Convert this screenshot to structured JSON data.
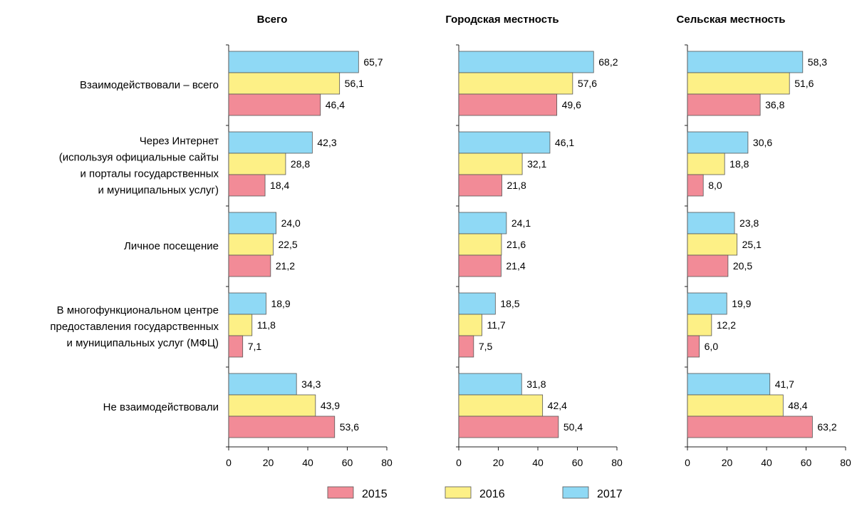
{
  "chart_data": {
    "type": "bar",
    "orientation": "horizontal",
    "categories": [
      [
        "Взаимодействовали – всего"
      ],
      [
        "Через Интернет",
        "(используя официальные сайты",
        "и порталы государственных",
        "и муниципальных услуг)"
      ],
      [
        "Личное посещение"
      ],
      [
        "В многофункциональном центре",
        "предоставления государственных",
        "и муниципальных услуг (МФЦ)"
      ],
      [
        "Не взаимодействовали"
      ]
    ],
    "xlim": [
      0,
      80
    ],
    "xticks": [
      "0",
      "20",
      "40",
      "60",
      "80"
    ],
    "legend_position": "bottom",
    "legend": [
      {
        "label": "2015",
        "color": "#f28b97"
      },
      {
        "label": "2016",
        "color": "#fdf086"
      },
      {
        "label": "2017",
        "color": "#8fd9f5"
      }
    ],
    "panels": [
      {
        "title": "Всего",
        "series": [
          {
            "name": "2017",
            "values": [
              65.7,
              42.3,
              24.0,
              18.9,
              34.3
            ],
            "labels": [
              "65,7",
              "42,3",
              "24,0",
              "18,9",
              "34,3"
            ]
          },
          {
            "name": "2016",
            "values": [
              56.1,
              28.8,
              22.5,
              11.8,
              43.9
            ],
            "labels": [
              "56,1",
              "28,8",
              "22,5",
              "11,8",
              "43,9"
            ]
          },
          {
            "name": "2015",
            "values": [
              46.4,
              18.4,
              21.2,
              7.1,
              53.6
            ],
            "labels": [
              "46,4",
              "18,4",
              "21,2",
              "7,1",
              "53,6"
            ]
          }
        ]
      },
      {
        "title": "Городская местность",
        "series": [
          {
            "name": "2017",
            "values": [
              68.2,
              46.1,
              24.1,
              18.5,
              31.8
            ],
            "labels": [
              "68,2",
              "46,1",
              "24,1",
              "18,5",
              "31,8"
            ]
          },
          {
            "name": "2016",
            "values": [
              57.6,
              32.1,
              21.6,
              11.7,
              42.4
            ],
            "labels": [
              "57,6",
              "32,1",
              "21,6",
              "11,7",
              "42,4"
            ]
          },
          {
            "name": "2015",
            "values": [
              49.6,
              21.8,
              21.4,
              7.5,
              50.4
            ],
            "labels": [
              "49,6",
              "21,8",
              "21,4",
              "7,5",
              "50,4"
            ]
          }
        ]
      },
      {
        "title": "Сельская местность",
        "series": [
          {
            "name": "2017",
            "values": [
              58.3,
              30.6,
              23.8,
              19.9,
              41.7
            ],
            "labels": [
              "58,3",
              "30,6",
              "23,8",
              "19,9",
              "41,7"
            ]
          },
          {
            "name": "2016",
            "values": [
              51.6,
              18.8,
              25.1,
              12.2,
              48.4
            ],
            "labels": [
              "51,6",
              "18,8",
              "25,1",
              "12,2",
              "48,4"
            ]
          },
          {
            "name": "2015",
            "values": [
              36.8,
              8.0,
              20.5,
              6.0,
              63.2
            ],
            "labels": [
              "36,8",
              "8,0",
              "20,5",
              "6,0",
              "63,2"
            ]
          }
        ]
      }
    ]
  }
}
